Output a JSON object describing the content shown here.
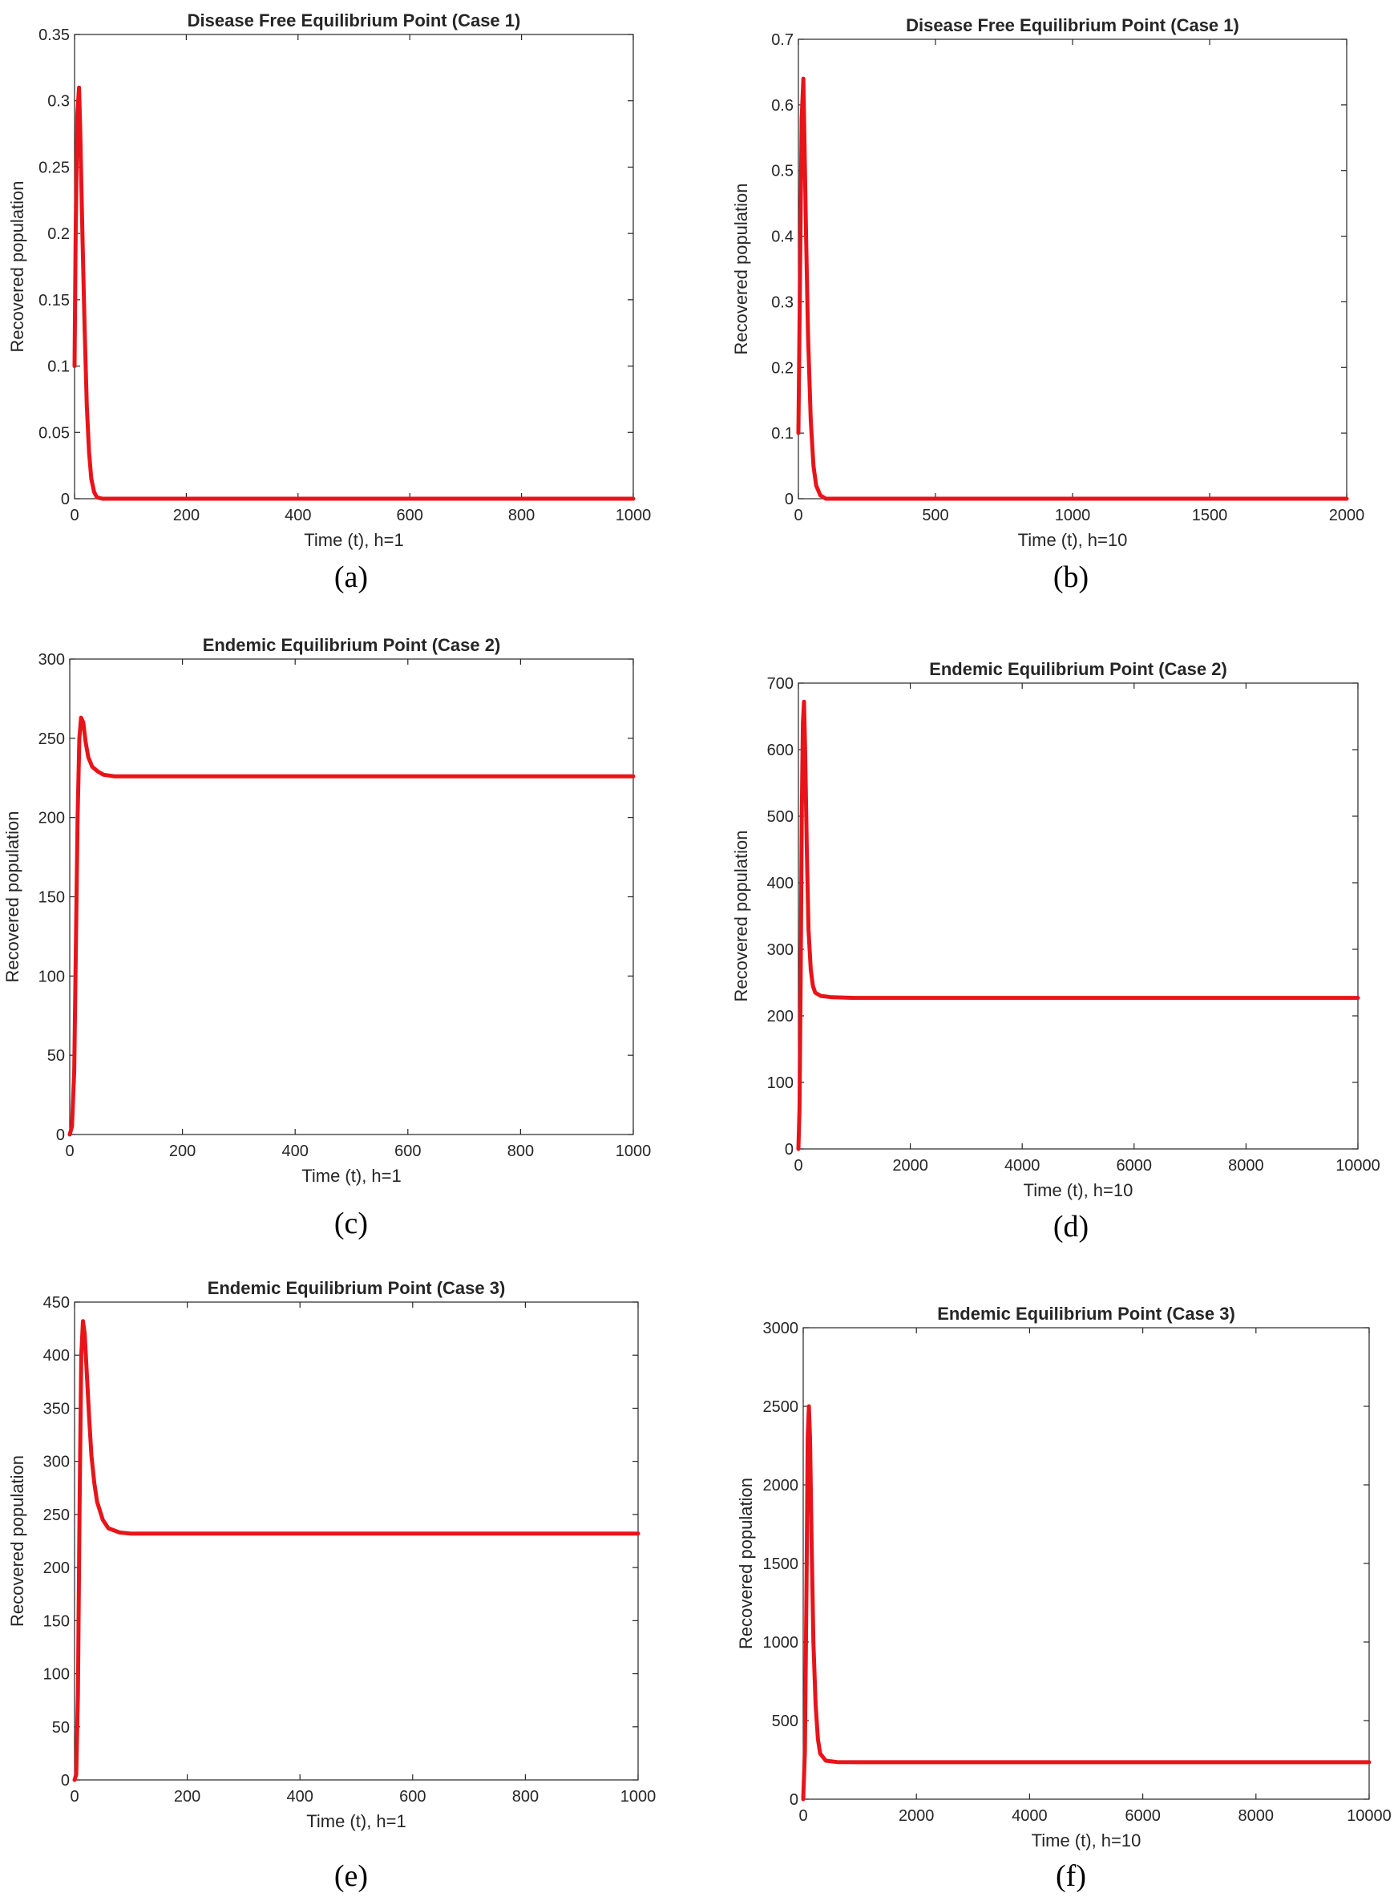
{
  "colors": {
    "series": "#e8141a",
    "axes": "#262626"
  },
  "chart_data": [
    {
      "type": "line",
      "caption": "(a)",
      "title": "Disease Free Equilibrium Point (Case 1)",
      "xlabel": "Time (t), h=1",
      "ylabel": "Recovered population",
      "xlim": [
        0,
        1000
      ],
      "ylim": [
        0,
        0.35
      ],
      "xticks": [
        0,
        200,
        400,
        600,
        800,
        1000
      ],
      "xtick_labels": [
        "0",
        "200",
        "400",
        "600",
        "800",
        "1000"
      ],
      "yticks": [
        0,
        0.05,
        0.1,
        0.15,
        0.2,
        0.25,
        0.3,
        0.35
      ],
      "ytick_labels": [
        "0",
        "0.05",
        "0.1",
        "0.15",
        "0.2",
        "0.25",
        "0.3",
        "0.35"
      ],
      "grid": false,
      "series": [
        {
          "x": [
            0,
            2,
            5,
            8,
            10,
            14,
            18,
            22,
            26,
            30,
            35,
            40,
            50,
            100,
            300,
            600,
            1000
          ],
          "y": [
            0.1,
            0.2,
            0.29,
            0.31,
            0.28,
            0.2,
            0.13,
            0.07,
            0.035,
            0.015,
            0.005,
            0.001,
            0,
            0,
            0,
            0,
            0
          ]
        }
      ]
    },
    {
      "type": "line",
      "caption": "(b)",
      "title": "Disease Free Equilibrium Point (Case 1)",
      "xlabel": "Time (t), h=10",
      "ylabel": "Recovered population",
      "xlim": [
        0,
        2000
      ],
      "ylim": [
        0,
        0.7
      ],
      "xticks": [
        0,
        500,
        1000,
        1500,
        2000
      ],
      "xtick_labels": [
        "0",
        "500",
        "1000",
        "1500",
        "2000"
      ],
      "yticks": [
        0,
        0.1,
        0.2,
        0.3,
        0.4,
        0.5,
        0.6,
        0.7
      ],
      "ytick_labels": [
        "0",
        "0.1",
        "0.2",
        "0.3",
        "0.4",
        "0.5",
        "0.6",
        "0.7"
      ],
      "grid": false,
      "series": [
        {
          "x": [
            0,
            5,
            12,
            18,
            22,
            28,
            35,
            45,
            55,
            65,
            80,
            100,
            150,
            500,
            1000,
            2000
          ],
          "y": [
            0.1,
            0.3,
            0.58,
            0.64,
            0.55,
            0.4,
            0.25,
            0.12,
            0.05,
            0.02,
            0.005,
            0,
            0,
            0,
            0,
            0
          ]
        }
      ]
    },
    {
      "type": "line",
      "caption": "(c)",
      "title": "Endemic Equilibrium Point (Case 2)",
      "xlabel": "Time (t), h=1",
      "ylabel": "Recovered population",
      "xlim": [
        0,
        1000
      ],
      "ylim": [
        0,
        300
      ],
      "xticks": [
        0,
        200,
        400,
        600,
        800,
        1000
      ],
      "xtick_labels": [
        "0",
        "200",
        "400",
        "600",
        "800",
        "1000"
      ],
      "yticks": [
        0,
        50,
        100,
        150,
        200,
        250,
        300
      ],
      "ytick_labels": [
        "0",
        "50",
        "100",
        "150",
        "200",
        "250",
        "300"
      ],
      "grid": false,
      "series": [
        {
          "x": [
            0,
            4,
            8,
            11,
            14,
            17,
            20,
            24,
            28,
            33,
            40,
            50,
            60,
            80,
            100,
            200,
            500,
            1000
          ],
          "y": [
            0,
            5,
            40,
            120,
            200,
            250,
            263,
            260,
            248,
            238,
            232,
            229,
            227,
            226,
            226,
            226,
            226,
            226
          ]
        }
      ]
    },
    {
      "type": "line",
      "caption": "(d)",
      "title": "Endemic Equilibrium Point (Case 2)",
      "xlabel": "Time (t), h=10",
      "ylabel": "Recovered population",
      "xlim": [
        0,
        10000
      ],
      "ylim": [
        0,
        700
      ],
      "xticks": [
        0,
        2000,
        4000,
        6000,
        8000,
        10000
      ],
      "xtick_labels": [
        "0",
        "2000",
        "4000",
        "6000",
        "8000",
        "10000"
      ],
      "yticks": [
        0,
        100,
        200,
        300,
        400,
        500,
        600,
        700
      ],
      "ytick_labels": [
        "0",
        "100",
        "200",
        "300",
        "400",
        "500",
        "600",
        "700"
      ],
      "grid": false,
      "series": [
        {
          "x": [
            0,
            20,
            40,
            60,
            80,
            100,
            120,
            150,
            180,
            220,
            260,
            300,
            400,
            600,
            1000,
            5000,
            10000
          ],
          "y": [
            0,
            60,
            250,
            500,
            640,
            672,
            600,
            450,
            330,
            270,
            245,
            235,
            230,
            228,
            227,
            227,
            227
          ]
        }
      ]
    },
    {
      "type": "line",
      "caption": "(e)",
      "title": "Endemic Equilibrium Point (Case 3)",
      "xlabel": "Time (t), h=1",
      "ylabel": "Recovered population",
      "xlim": [
        0,
        1000
      ],
      "ylim": [
        0,
        450
      ],
      "xticks": [
        0,
        200,
        400,
        600,
        800,
        1000
      ],
      "xtick_labels": [
        "0",
        "200",
        "400",
        "600",
        "800",
        "1000"
      ],
      "yticks": [
        0,
        50,
        100,
        150,
        200,
        250,
        300,
        350,
        400,
        450
      ],
      "ytick_labels": [
        "0",
        "50",
        "100",
        "150",
        "200",
        "250",
        "300",
        "350",
        "400",
        "450"
      ],
      "grid": false,
      "series": [
        {
          "x": [
            0,
            3,
            6,
            9,
            12,
            15,
            18,
            22,
            26,
            30,
            35,
            40,
            50,
            60,
            80,
            100,
            200,
            500,
            1000
          ],
          "y": [
            0,
            5,
            80,
            260,
            400,
            432,
            420,
            380,
            340,
            305,
            280,
            262,
            245,
            237,
            233,
            232,
            232,
            232,
            232
          ]
        }
      ]
    },
    {
      "type": "line",
      "caption": "(f)",
      "title": "Endemic Equilibrium Point (Case 3)",
      "xlabel": "Time (t), h=10",
      "ylabel": "Recovered population",
      "xlim": [
        0,
        10000
      ],
      "ylim": [
        0,
        3000
      ],
      "xticks": [
        0,
        2000,
        4000,
        6000,
        8000,
        10000
      ],
      "xtick_labels": [
        "0",
        "2000",
        "4000",
        "6000",
        "8000",
        "10000"
      ],
      "yticks": [
        0,
        500,
        1000,
        1500,
        2000,
        2500,
        3000
      ],
      "ytick_labels": [
        "0",
        "500",
        "1000",
        "1500",
        "2000",
        "2500",
        "3000"
      ],
      "grid": false,
      "series": [
        {
          "x": [
            0,
            30,
            60,
            80,
            100,
            120,
            150,
            180,
            220,
            260,
            300,
            400,
            600,
            1000,
            5000,
            10000
          ],
          "y": [
            0,
            300,
            1400,
            2300,
            2500,
            2300,
            1600,
            1000,
            600,
            380,
            290,
            245,
            236,
            235,
            235,
            235
          ]
        }
      ]
    }
  ]
}
